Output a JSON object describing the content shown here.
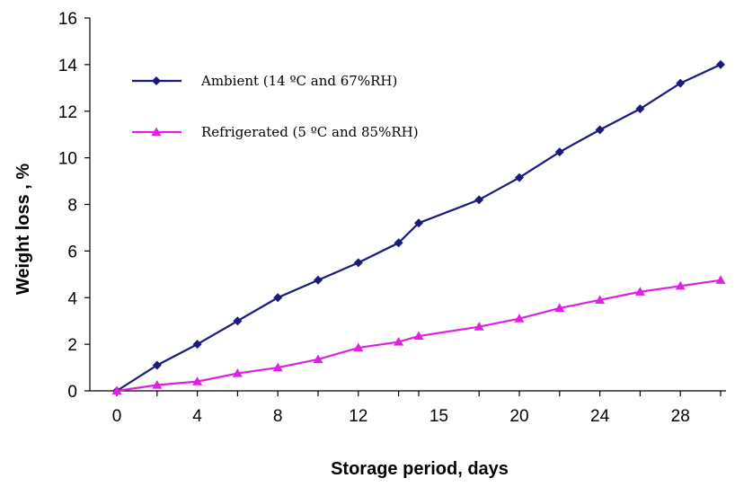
{
  "chart_data": {
    "type": "line",
    "title": "",
    "xlabel": "Storage period, days",
    "ylabel": "Weight loss , %",
    "x_ticks": [
      "0",
      "4",
      "8",
      "12",
      "15",
      "20",
      "24",
      "28"
    ],
    "y_ticks": [
      "0",
      "2",
      "4",
      "6",
      "8",
      "10",
      "12",
      "14",
      "16"
    ],
    "ylim": [
      0,
      16
    ],
    "grid": false,
    "legend_position": "top-left",
    "x": [
      0,
      2,
      4,
      6,
      8,
      10,
      12,
      14,
      15,
      18,
      20,
      22,
      24,
      26,
      28,
      30
    ],
    "series": [
      {
        "name": "Ambient (14 ºC and 67%RH)",
        "color": "#1a1a7a",
        "marker": "diamond",
        "values": [
          0,
          1.1,
          2.0,
          3.0,
          4.0,
          4.75,
          5.5,
          6.35,
          7.2,
          8.2,
          9.15,
          10.25,
          11.2,
          12.1,
          13.2,
          14.0
        ]
      },
      {
        "name": "Refrigerated (5 ºC and 85%RH)",
        "color": "#e020e0",
        "marker": "triangle",
        "values": [
          0,
          0.25,
          0.4,
          0.75,
          1.0,
          1.35,
          1.85,
          2.1,
          2.35,
          2.75,
          3.1,
          3.55,
          3.9,
          4.25,
          4.5,
          4.75
        ]
      }
    ]
  }
}
